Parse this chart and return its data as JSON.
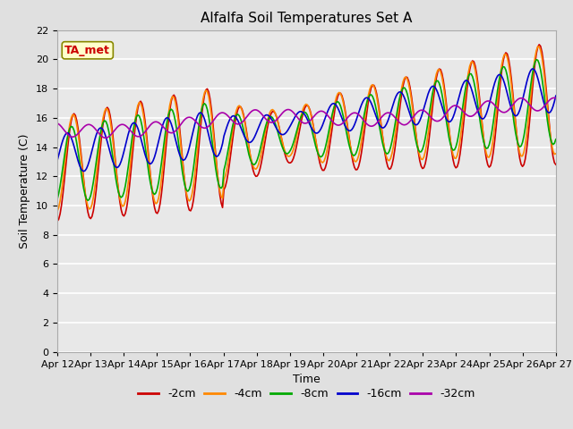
{
  "title": "Alfalfa Soil Temperatures Set A",
  "xlabel": "Time",
  "ylabel": "Soil Temperature (C)",
  "ylim": [
    0,
    22
  ],
  "annotation": "TA_met",
  "plot_bg_color": "#e8e8e8",
  "fig_bg_color": "#e0e0e0",
  "grid_color": "#ffffff",
  "series": [
    {
      "label": "-2cm",
      "color": "#cc0000"
    },
    {
      "label": "-4cm",
      "color": "#ff8800"
    },
    {
      "label": "-8cm",
      "color": "#00aa00"
    },
    {
      "label": "-16cm",
      "color": "#0000cc"
    },
    {
      "label": "-32cm",
      "color": "#aa00aa"
    }
  ],
  "x_tick_labels": [
    "Apr 12",
    "Apr 13",
    "Apr 14",
    "Apr 15",
    "Apr 16",
    "Apr 17",
    "Apr 18",
    "Apr 19",
    "Apr 20",
    "Apr 21",
    "Apr 22",
    "Apr 23",
    "Apr 24",
    "Apr 25",
    "Apr 26",
    "Apr 27"
  ],
  "title_fontsize": 11,
  "axis_fontsize": 9,
  "tick_fontsize": 8,
  "legend_fontsize": 9,
  "linewidth": 1.2
}
